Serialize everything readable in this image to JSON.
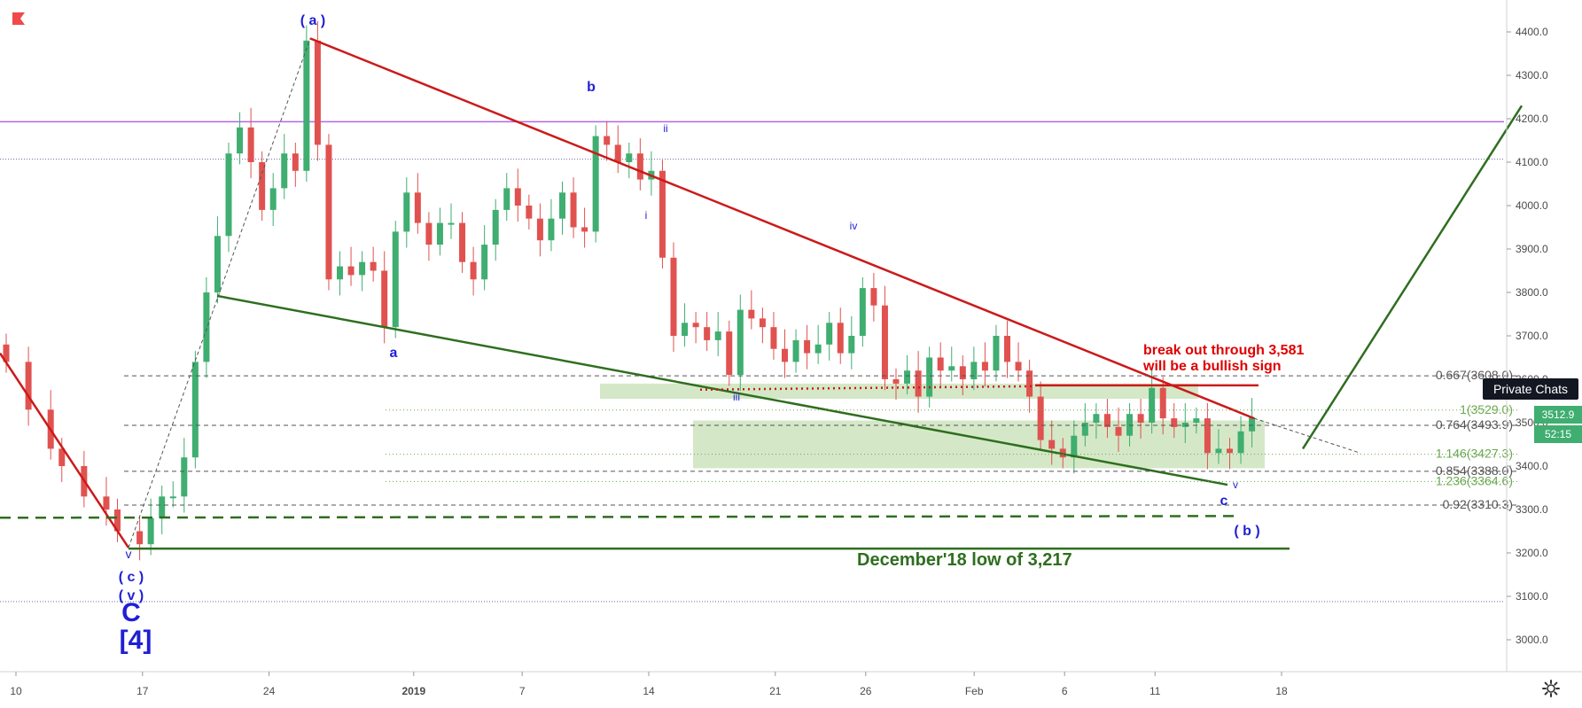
{
  "chart_data": {
    "type": "candlestick",
    "y_axis": {
      "range": [
        2920,
        4460
      ],
      "ticks": [
        3000,
        3100,
        3200,
        3300,
        3400,
        3500,
        3600,
        3700,
        3800,
        3900,
        4000,
        4100,
        4200,
        4300,
        4400
      ],
      "tick_labels": [
        "3000.0",
        "3100.0",
        "3200.0",
        "3300.0",
        "3400.0",
        "3500.0",
        "3600.0",
        "3700.0",
        "3800.0",
        "3900.0",
        "4000.0",
        "4100.0",
        "4200.0",
        "4300.0",
        "4400.0"
      ]
    },
    "x_axis": {
      "tick_labels": [
        "10",
        "17",
        "24",
        "2019",
        "7",
        "14",
        "21",
        "26",
        "Feb",
        "6",
        "11",
        "18"
      ],
      "tick_days": [
        10,
        17,
        24,
        32,
        38,
        45,
        52,
        57,
        63,
        68,
        73,
        80
      ]
    },
    "price_path": [
      [
        2,
        3640
      ],
      [
        4,
        3530
      ],
      [
        6,
        3440
      ],
      [
        7,
        3400
      ],
      [
        9,
        3330
      ],
      [
        11,
        3300
      ],
      [
        12,
        3250
      ],
      [
        14,
        3220
      ],
      [
        15,
        3280
      ],
      [
        16,
        3330
      ],
      [
        17,
        3330
      ],
      [
        18,
        3420
      ],
      [
        19,
        3640
      ],
      [
        20,
        3800
      ],
      [
        21,
        3930
      ],
      [
        22,
        4120
      ],
      [
        23,
        4180
      ],
      [
        24,
        4100
      ],
      [
        25,
        3990
      ],
      [
        26,
        4040
      ],
      [
        27,
        4120
      ],
      [
        28,
        4080
      ],
      [
        29,
        4380
      ],
      [
        30,
        4140
      ],
      [
        31,
        3830
      ],
      [
        32,
        3860
      ],
      [
        33,
        3840
      ],
      [
        34,
        3870
      ],
      [
        35,
        3850
      ],
      [
        36,
        3720
      ],
      [
        37,
        3940
      ],
      [
        38,
        4030
      ],
      [
        39,
        3960
      ],
      [
        40,
        3910
      ],
      [
        41,
        3960
      ],
      [
        42,
        3960
      ],
      [
        43,
        3870
      ],
      [
        44,
        3830
      ],
      [
        45,
        3910
      ],
      [
        46,
        3990
      ],
      [
        47,
        4040
      ],
      [
        48,
        4000
      ],
      [
        49,
        3970
      ],
      [
        50,
        3920
      ],
      [
        51,
        3970
      ],
      [
        52,
        4030
      ],
      [
        53,
        3950
      ],
      [
        54,
        3940
      ],
      [
        55,
        4160
      ],
      [
        56,
        4140
      ],
      [
        57,
        4100
      ],
      [
        58,
        4120
      ],
      [
        59,
        4060
      ],
      [
        60,
        4080
      ],
      [
        61,
        3880
      ],
      [
        62,
        3700
      ],
      [
        63,
        3730
      ],
      [
        64,
        3720
      ],
      [
        65,
        3690
      ],
      [
        66,
        3710
      ],
      [
        67,
        3610
      ],
      [
        68,
        3760
      ],
      [
        69,
        3740
      ],
      [
        70,
        3720
      ],
      [
        71,
        3670
      ],
      [
        72,
        3640
      ],
      [
        73,
        3690
      ],
      [
        74,
        3660
      ],
      [
        75,
        3680
      ],
      [
        76,
        3730
      ],
      [
        77,
        3660
      ],
      [
        78,
        3700
      ],
      [
        79,
        3810
      ],
      [
        80,
        3770
      ],
      [
        81,
        3600
      ],
      [
        82,
        3590
      ],
      [
        83,
        3620
      ],
      [
        84,
        3560
      ],
      [
        85,
        3650
      ],
      [
        86,
        3620
      ],
      [
        87,
        3630
      ],
      [
        88,
        3600
      ],
      [
        89,
        3640
      ],
      [
        90,
        3620
      ],
      [
        91,
        3700
      ],
      [
        92,
        3640
      ],
      [
        93,
        3620
      ],
      [
        94,
        3560
      ],
      [
        95,
        3460
      ],
      [
        96,
        3440
      ],
      [
        97,
        3420
      ],
      [
        98,
        3470
      ],
      [
        99,
        3500
      ],
      [
        100,
        3520
      ],
      [
        101,
        3490
      ],
      [
        102,
        3470
      ],
      [
        103,
        3520
      ],
      [
        104,
        3500
      ],
      [
        105,
        3580
      ],
      [
        106,
        3510
      ],
      [
        107,
        3490
      ],
      [
        108,
        3500
      ],
      [
        109,
        3510
      ],
      [
        110,
        3430
      ],
      [
        111,
        3440
      ],
      [
        112,
        3430
      ],
      [
        113,
        3480
      ],
      [
        114,
        3512
      ]
    ],
    "horizontal_levels": [
      {
        "label": "0.667(3608.0)",
        "price": 3608.0,
        "color": "#555555",
        "style": "dashed"
      },
      {
        "label": "1(3529.0)",
        "price": 3529.0,
        "color": "#6aa84f",
        "style": "dotted"
      },
      {
        "label": "0.764(3493.9)",
        "price": 3493.9,
        "color": "#555555",
        "style": "dashed"
      },
      {
        "label": "1.146(3427.3)",
        "price": 3427.3,
        "color": "#6aa84f",
        "style": "dotted"
      },
      {
        "label": "0.854(3388.0)",
        "price": 3388.0,
        "color": "#555555",
        "style": "dashed"
      },
      {
        "label": "1.236(3364.6)",
        "price": 3364.6,
        "color": "#6aa84f",
        "style": "dotted"
      },
      {
        "label": "0.92(3310.3)",
        "price": 3310.3,
        "color": "#555555",
        "style": "dashed"
      }
    ],
    "wave_labels": [
      {
        "text": "( a )",
        "color": "#1f1fd6",
        "size": 16
      },
      {
        "text": "b",
        "color": "#1f1fd6",
        "size": 16
      },
      {
        "text": "ii",
        "color": "#1f1fd6",
        "size": 12
      },
      {
        "text": "i",
        "color": "#1f1fd6",
        "size": 12
      },
      {
        "text": "iv",
        "color": "#1f1fd6",
        "size": 12
      },
      {
        "text": "a",
        "color": "#1f1fd6",
        "size": 16
      },
      {
        "text": "iii",
        "color": "#1f1fd6",
        "size": 12
      },
      {
        "text": "v",
        "color": "#1f1fd6",
        "size": 12
      },
      {
        "text": "c",
        "color": "#1f1fd6",
        "size": 16
      },
      {
        "text": "( b )",
        "color": "#1f1fd6",
        "size": 16
      },
      {
        "text": "v",
        "color": "#1f1fd6",
        "size": 14
      },
      {
        "text": "( c )",
        "color": "#1f1fd6",
        "size": 16
      },
      {
        "text": "( v )",
        "color": "#1f1fd6",
        "size": 16
      },
      {
        "text": "C",
        "color": "#1f1fd6",
        "size": 30
      },
      {
        "text": "[4]",
        "color": "#1f1fd6",
        "size": 30
      }
    ],
    "annotations": [
      {
        "text": "break out through 3,581",
        "color": "#e00000"
      },
      {
        "text": "will be a bullish sign",
        "color": "#e00000"
      },
      {
        "text": "December'18 low of 3,217",
        "color": "#2e6e1f"
      }
    ],
    "current_price": "3512.9",
    "countdown": "52:15",
    "colors": {
      "up": "#3fae70",
      "down": "#e0524f",
      "trend_red": "#cc1a1a",
      "trend_green": "#2e6e1f",
      "purple_level": "#b266e6"
    }
  },
  "ui": {
    "private_chats_label": "Private Chats",
    "flag_icon": "flag-icon",
    "settings_icon": "gear-icon"
  }
}
